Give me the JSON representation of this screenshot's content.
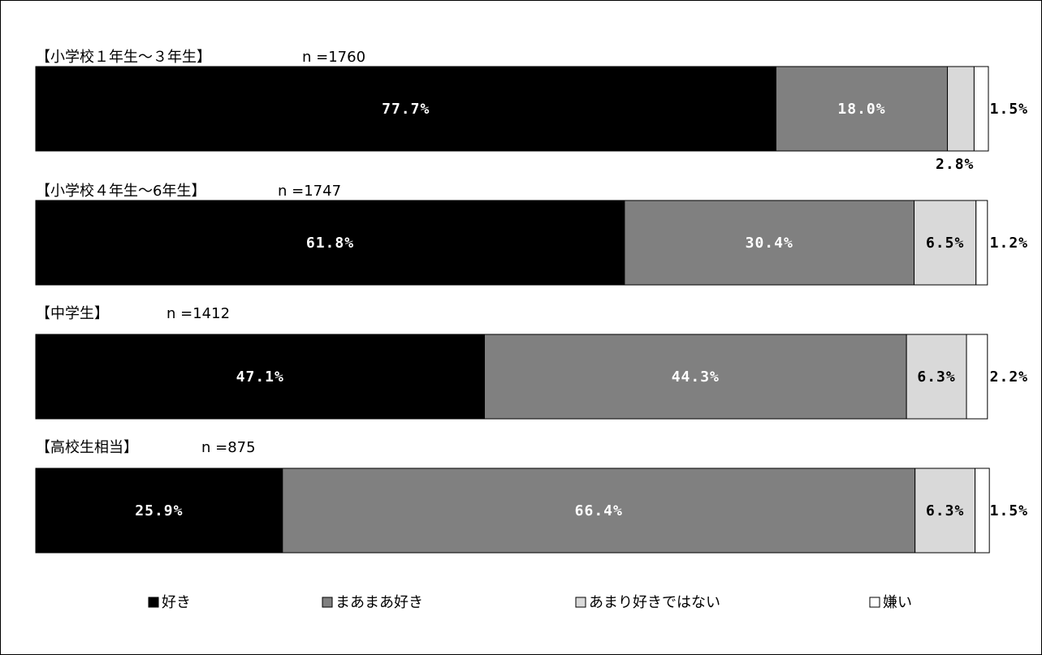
{
  "chart_data": {
    "type": "bar",
    "orientation": "horizontal",
    "stacked": true,
    "normalized": true,
    "xlim": [
      0,
      100
    ],
    "grid": false,
    "legend_position": "bottom",
    "groups": [
      {
        "title": "【小学校１年生～３年生】",
        "n_label": "n =1760"
      },
      {
        "title": "【小学校４年生～6年生】",
        "n_label": "n =1747"
      },
      {
        "title": "【中学生】",
        "n_label": "n =1412"
      },
      {
        "title": "【高校生相当】",
        "n_label": "n =875"
      }
    ],
    "series": [
      {
        "name": "好き",
        "color": "#000000",
        "values": [
          77.7,
          61.8,
          47.1,
          25.9
        ],
        "labels": [
          "77.7%",
          "61.8%",
          "47.1%",
          "25.9%"
        ]
      },
      {
        "name": "まあまあ好き",
        "color": "#808080",
        "values": [
          18.0,
          30.4,
          44.3,
          66.4
        ],
        "labels": [
          "18.0%",
          "30.4%",
          "44.3%",
          "66.4%"
        ]
      },
      {
        "name": "あまり好きではない",
        "color": "#d9d9d9",
        "values": [
          2.8,
          6.5,
          6.3,
          6.3
        ],
        "labels": [
          "2.8%",
          "6.5%",
          "6.3%",
          "6.3%"
        ]
      },
      {
        "name": "嫌い",
        "color": "#ffffff",
        "values": [
          1.5,
          1.2,
          2.2,
          1.5
        ],
        "labels": [
          "1.5%",
          "1.2%",
          "2.2%",
          "1.5%"
        ]
      }
    ]
  }
}
